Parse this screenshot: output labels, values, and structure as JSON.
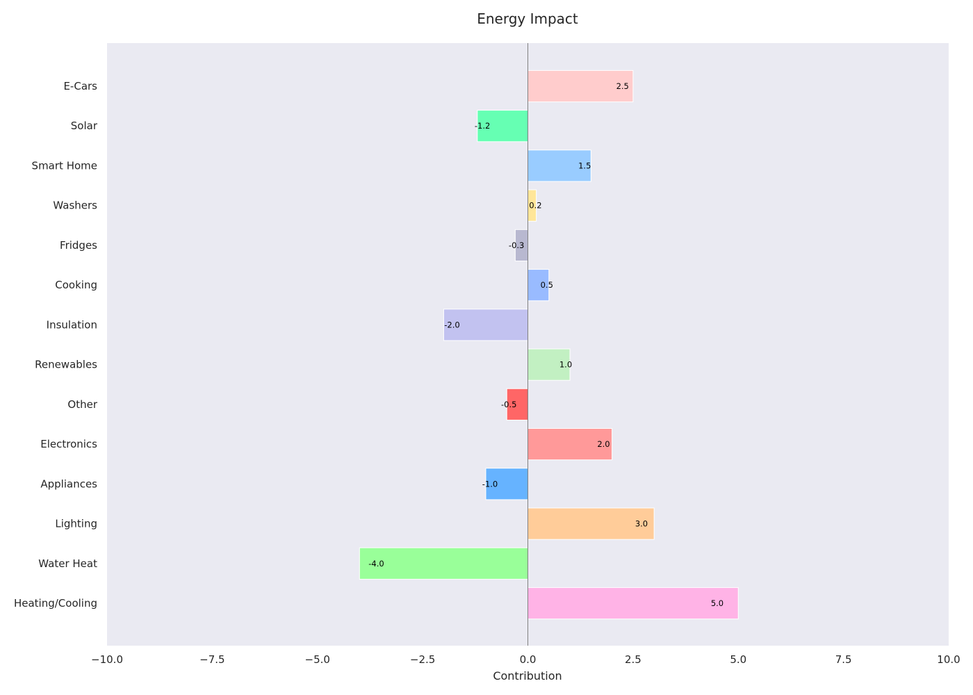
{
  "chart_data": {
    "type": "bar",
    "orientation": "horizontal",
    "title": "Energy Impact",
    "xlabel": "Contribution",
    "ylabel": "",
    "xlim": [
      -10,
      10
    ],
    "x_ticks": [
      "−10.0",
      "−7.5",
      "−5.0",
      "−2.5",
      "0.0",
      "2.5",
      "5.0",
      "7.5",
      "10.0"
    ],
    "categories": [
      "Heating/Cooling",
      "Water Heat",
      "Lighting",
      "Appliances",
      "Electronics",
      "Other",
      "Renewables",
      "Insulation",
      "Cooking",
      "Fridges",
      "Washers",
      "Smart Home",
      "Solar",
      "E-Cars"
    ],
    "values": [
      5.0,
      -4.0,
      3.0,
      -1.0,
      2.0,
      -0.5,
      1.0,
      -2.0,
      0.5,
      -0.3,
      0.2,
      1.5,
      -1.2,
      2.5
    ],
    "value_labels": [
      "5.0",
      "-4.0",
      "3.0",
      "-1.0",
      "2.0",
      "-0.5",
      "1.0",
      "-2.0",
      "0.5",
      "-0.3",
      "0.2",
      "1.5",
      "-1.2",
      "2.5"
    ],
    "colors": [
      "#ffb3e6",
      "#99ff99",
      "#ffcc99",
      "#66b3ff",
      "#ff9999",
      "#ff6666",
      "#c2f0c2",
      "#c2c2f0",
      "#99bbff",
      "#b8b8d0",
      "#ffe699",
      "#99ccff",
      "#66ffb3",
      "#ffcccc"
    ],
    "grid": false,
    "background": "#eaeaf2",
    "zero_line_color": "#808080"
  }
}
